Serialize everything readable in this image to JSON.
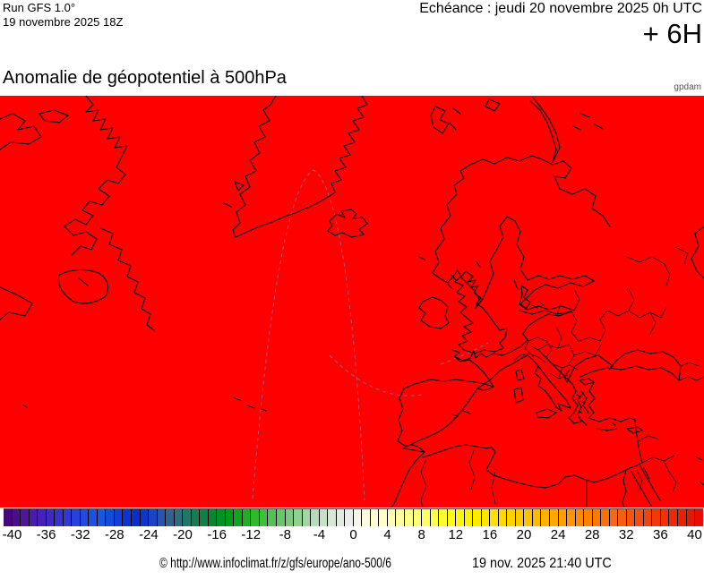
{
  "header": {
    "model_run_line1": "Run GFS 1.0°",
    "model_run_line2": "19 novembre 2025 18Z",
    "validity_label": "Echéance : jeudi 20 novembre 2025 0h UTC",
    "forecast_step": "+ 6H"
  },
  "title": "Anomalie de géopotentiel à 500hPa",
  "unit_label": "gpdam",
  "map": {
    "fill_color": "#ff0000",
    "coastline_color": "#000000",
    "border_color": "#000000",
    "graticule_color": "#7a86b8"
  },
  "chart_data": {
    "type": "heatmap",
    "title": "Anomalie de géopotentiel à 500hPa",
    "unit": "gpdam",
    "uniform_field_color": "#ff0000",
    "colorbar": {
      "min": -41,
      "max": 41,
      "cell_step": 1,
      "ticks": [
        -40,
        -36,
        -32,
        -28,
        -24,
        -20,
        -16,
        -12,
        -8,
        -4,
        0,
        4,
        8,
        12,
        16,
        20,
        24,
        28,
        32,
        36,
        40
      ],
      "colors": [
        "#45077a",
        "#4d0d8c",
        "#52149a",
        "#4c1ba9",
        "#4522b7",
        "#3e29c5",
        "#3731ce",
        "#3039d5",
        "#2941db",
        "#2349e0",
        "#1d50e1",
        "#1757e1",
        "#144bdd",
        "#103fd9",
        "#0c33d5",
        "#0a2cd0",
        "#1134cc",
        "#1c43c6",
        "#2755ab",
        "#2d6390",
        "#2b6e7c",
        "#237566",
        "#1a7a52",
        "#128040",
        "#0b8630",
        "#059024",
        "#039a1c",
        "#0fa51d",
        "#1fb022",
        "#2eb92f",
        "#3fbe41",
        "#52c254",
        "#66c768",
        "#7acc7c",
        "#8ed191",
        "#a2d6a5",
        "#b5dbb8",
        "#c7e1c9",
        "#d7e6d7",
        "#e3eae2",
        "#ecedea",
        "#f5f5e9",
        "#fcfcdf",
        "#ffffd2",
        "#ffffc4",
        "#ffffb4",
        "#ffffa2",
        "#ffff8e",
        "#ffff78",
        "#ffff60",
        "#ffff48",
        "#fffd30",
        "#fffa1c",
        "#fff60c",
        "#fff200",
        "#ffec00",
        "#ffe600",
        "#ffe000",
        "#ffd900",
        "#ffd200",
        "#ffca00",
        "#ffc200",
        "#ffba00",
        "#ffb100",
        "#ffa800",
        "#ff9f00",
        "#ff9600",
        "#ff8c00",
        "#ff8200",
        "#fd7800",
        "#fb6f08",
        "#f9661a",
        "#f85d17",
        "#f75414",
        "#f64b11",
        "#f4420e",
        "#f2390b",
        "#f03008",
        "#ee2706",
        "#ec1e04",
        "#ea1502",
        "#e80c01"
      ]
    }
  },
  "footer": {
    "copyright": "© http://www.infoclimat.fr/z/gfs/europe/ano-500/6",
    "datetime": "19 nov. 2025 21:40 UTC"
  }
}
